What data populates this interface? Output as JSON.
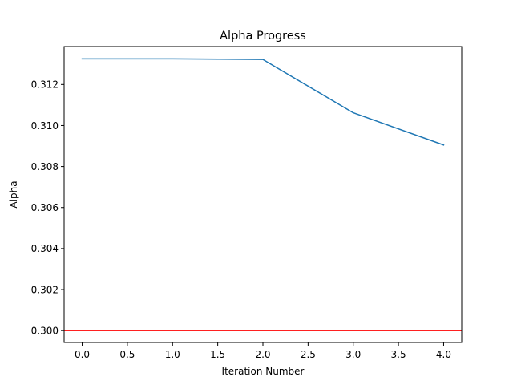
{
  "chart_data": {
    "type": "line",
    "title": "Alpha Progress",
    "xlabel": "Iteration Number",
    "ylabel": "Alpha",
    "xlim": [
      -0.2,
      4.2
    ],
    "ylim": [
      0.29942,
      0.31385
    ],
    "x_ticks": [
      0.0,
      0.5,
      1.0,
      1.5,
      2.0,
      2.5,
      3.0,
      3.5,
      4.0
    ],
    "x_tick_labels": [
      "0.0",
      "0.5",
      "1.0",
      "1.5",
      "2.0",
      "2.5",
      "3.0",
      "3.5",
      "4.0"
    ],
    "y_ticks": [
      0.3,
      0.302,
      0.304,
      0.306,
      0.308,
      0.31,
      0.312
    ],
    "y_tick_labels": [
      "0.300",
      "0.302",
      "0.304",
      "0.306",
      "0.308",
      "0.310",
      "0.312"
    ],
    "grid": false,
    "series": [
      {
        "x": [
          0,
          1,
          2,
          3,
          4
        ],
        "values": [
          0.31325,
          0.31325,
          0.31322,
          0.31062,
          0.30905
        ],
        "color": "#1f77b4"
      }
    ],
    "reference_line": {
      "y": 0.3,
      "color": "#ff0000"
    }
  }
}
